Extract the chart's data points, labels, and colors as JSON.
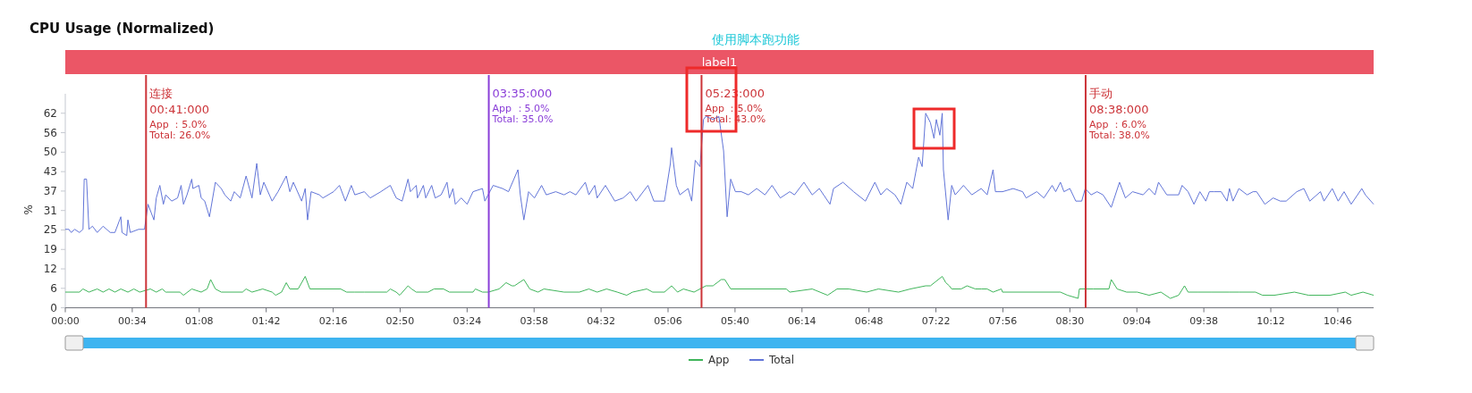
{
  "chart_data": {
    "type": "line",
    "title": "CPU Usage (Normalized)",
    "ylabel": "%",
    "legend": "bottom",
    "xlim": [
      0,
      11.07
    ],
    "ylim": [
      0,
      68.2
    ],
    "xticks": [
      {
        "value": 0,
        "label": "00:00"
      },
      {
        "value": 0.5667,
        "label": "00:34"
      },
      {
        "value": 1.1333,
        "label": "01:08"
      },
      {
        "value": 1.7,
        "label": "01:42"
      },
      {
        "value": 2.2667,
        "label": "02:16"
      },
      {
        "value": 2.8333,
        "label": "02:50"
      },
      {
        "value": 3.4,
        "label": "03:24"
      },
      {
        "value": 3.9667,
        "label": "03:58"
      },
      {
        "value": 4.5333,
        "label": "04:32"
      },
      {
        "value": 5.1,
        "label": "05:06"
      },
      {
        "value": 5.6667,
        "label": "05:40"
      },
      {
        "value": 6.2333,
        "label": "06:14"
      },
      {
        "value": 6.8,
        "label": "06:48"
      },
      {
        "value": 7.3667,
        "label": "07:22"
      },
      {
        "value": 7.9333,
        "label": "07:56"
      },
      {
        "value": 8.5,
        "label": "08:30"
      },
      {
        "value": 9.0667,
        "label": "09:04"
      },
      {
        "value": 9.6333,
        "label": "09:38"
      },
      {
        "value": 10.2,
        "label": "10:12"
      },
      {
        "value": 10.7667,
        "label": "10:46"
      }
    ],
    "yticks": [
      0,
      {
        "value": 6.2,
        "label": "6"
      },
      {
        "value": 12.4,
        "label": "12"
      },
      {
        "value": 18.6,
        "label": "19"
      },
      {
        "value": 24.8,
        "label": "25"
      },
      31,
      {
        "value": 37.2,
        "label": "37"
      },
      {
        "value": 43.4,
        "label": "43"
      },
      {
        "value": 49.6,
        "label": "50"
      },
      {
        "value": 55.8,
        "label": "56"
      },
      62
    ],
    "series": [
      {
        "name": "App",
        "color": "#3fb55a",
        "x": [
          0,
          0.03,
          0.12,
          0.15,
          0.2,
          0.27,
          0.32,
          0.37,
          0.42,
          0.47,
          0.53,
          0.58,
          0.63,
          0.72,
          0.77,
          0.82,
          0.85,
          0.97,
          1,
          1.07,
          1.15,
          1.2,
          1.23,
          1.27,
          1.32,
          1.5,
          1.53,
          1.58,
          1.67,
          1.75,
          1.78,
          1.83,
          1.87,
          1.9,
          1.97,
          2.03,
          2.07,
          2.33,
          2.38,
          2.45,
          2.53,
          2.72,
          2.75,
          2.8,
          2.83,
          2.9,
          2.93,
          2.97,
          3.07,
          3.12,
          3.2,
          3.25,
          3.45,
          3.47,
          3.53,
          3.58,
          3.67,
          3.73,
          3.78,
          3.8,
          3.88,
          3.93,
          4,
          4.05,
          4.22,
          4.35,
          4.43,
          4.5,
          4.58,
          4.67,
          4.75,
          4.8,
          4.92,
          4.97,
          5.07,
          5.13,
          5.18,
          5.23,
          5.32,
          5.42,
          5.48,
          5.55,
          5.58,
          5.63,
          6.1,
          6.13,
          6.32,
          6.45,
          6.53,
          6.63,
          6.78,
          6.88,
          7.05,
          7.15,
          7.28,
          7.32,
          7.42,
          7.45,
          7.48,
          7.5,
          7.58,
          7.63,
          7.7,
          7.75,
          7.8,
          7.85,
          7.92,
          7.93,
          8.42,
          8.48,
          8.57,
          8.58,
          8.7,
          8.83,
          8.85,
          8.9,
          8.98,
          9.07,
          9.17,
          9.27,
          9.35,
          9.42,
          9.47,
          9.5,
          9.58,
          9.7,
          9.85,
          9.93,
          10.07,
          10.13,
          10.23,
          10.4,
          10.52,
          10.7,
          10.83,
          10.88,
          10.98,
          11.07
        ],
        "values": [
          5,
          5,
          5,
          6,
          5,
          6,
          5,
          6,
          5,
          6,
          5,
          6,
          5,
          6,
          5,
          6,
          5,
          5,
          4,
          6,
          5,
          6,
          9,
          6,
          5,
          5,
          6,
          5,
          6,
          5,
          4,
          5,
          8,
          6,
          6,
          10,
          6,
          6,
          5,
          5,
          5,
          5,
          6,
          5,
          4,
          7,
          6,
          5,
          5,
          6,
          6,
          5,
          5,
          6,
          5,
          5,
          6,
          8,
          7,
          7,
          9,
          6,
          5,
          6,
          5,
          5,
          6,
          5,
          6,
          5,
          4,
          5,
          6,
          5,
          5,
          7,
          5,
          6,
          5,
          7,
          7,
          9,
          9,
          6,
          6,
          5,
          6,
          4,
          6,
          6,
          5,
          6,
          5,
          6,
          7,
          7,
          10,
          8,
          7,
          6,
          6,
          7,
          6,
          6,
          6,
          5,
          6,
          5,
          5,
          4,
          3,
          6,
          6,
          6,
          9,
          6,
          5,
          5,
          4,
          5,
          3,
          4,
          7,
          5,
          5,
          5,
          5,
          5,
          5,
          4,
          4,
          5,
          4,
          4,
          5,
          4,
          5,
          4
        ]
      },
      {
        "name": "Total",
        "color": "#6275d8",
        "x": [
          0,
          0.03,
          0.05,
          0.08,
          0.12,
          0.15,
          0.16,
          0.18,
          0.2,
          0.23,
          0.27,
          0.32,
          0.38,
          0.42,
          0.47,
          0.48,
          0.52,
          0.53,
          0.55,
          0.62,
          0.67,
          0.7,
          0.75,
          0.77,
          0.8,
          0.83,
          0.85,
          0.9,
          0.95,
          0.98,
          1,
          1.03,
          1.07,
          1.08,
          1.13,
          1.15,
          1.18,
          1.22,
          1.27,
          1.32,
          1.35,
          1.4,
          1.43,
          1.48,
          1.53,
          1.58,
          1.62,
          1.65,
          1.68,
          1.75,
          1.8,
          1.87,
          1.9,
          1.93,
          2,
          2.03,
          2.05,
          2.08,
          2.15,
          2.18,
          2.27,
          2.32,
          2.37,
          2.42,
          2.45,
          2.53,
          2.58,
          2.67,
          2.75,
          2.8,
          2.85,
          2.9,
          2.92,
          2.97,
          2.98,
          3.03,
          3.05,
          3.1,
          3.13,
          3.18,
          3.23,
          3.25,
          3.28,
          3.3,
          3.35,
          3.4,
          3.45,
          3.53,
          3.55,
          3.62,
          3.7,
          3.75,
          3.83,
          3.85,
          3.88,
          3.92,
          3.97,
          4.03,
          4.07,
          4.15,
          4.22,
          4.27,
          4.32,
          4.4,
          4.43,
          4.48,
          4.5,
          4.57,
          4.65,
          4.72,
          4.78,
          4.83,
          4.93,
          4.98,
          5.07,
          5.12,
          5.13,
          5.17,
          5.2,
          5.27,
          5.3,
          5.33,
          5.37,
          5.4,
          5.42,
          5.48,
          5.53,
          5.57,
          5.6,
          5.63,
          5.67,
          5.72,
          5.78,
          5.85,
          5.92,
          5.98,
          6.05,
          6.13,
          6.17,
          6.25,
          6.32,
          6.38,
          6.47,
          6.5,
          6.58,
          6.67,
          6.77,
          6.85,
          6.9,
          6.95,
          7.02,
          7.07,
          7.12,
          7.17,
          7.22,
          7.25,
          7.28,
          7.32,
          7.35,
          7.37,
          7.4,
          7.42,
          7.43,
          7.47,
          7.5,
          7.53,
          7.6,
          7.67,
          7.75,
          7.8,
          7.85,
          7.87,
          7.93,
          8.02,
          8.1,
          8.13,
          8.22,
          8.28,
          8.35,
          8.38,
          8.42,
          8.45,
          8.5,
          8.55,
          8.6,
          8.63,
          8.68,
          8.73,
          8.78,
          8.85,
          8.92,
          8.97,
          9.03,
          9.12,
          9.17,
          9.22,
          9.25,
          9.32,
          9.42,
          9.45,
          9.5,
          9.55,
          9.6,
          9.65,
          9.68,
          9.72,
          9.78,
          9.83,
          9.85,
          9.88,
          9.93,
          10,
          10.05,
          10.08,
          10.15,
          10.22,
          10.28,
          10.33,
          10.42,
          10.48,
          10.53,
          10.62,
          10.65,
          10.72,
          10.77,
          10.82,
          10.88,
          10.97,
          11,
          11.07
        ],
        "values": [
          25,
          25,
          24,
          25,
          24,
          25,
          41,
          41,
          25,
          26,
          24,
          26,
          24,
          24,
          29,
          24,
          23,
          28,
          24,
          25,
          25,
          33,
          28,
          35,
          39,
          33,
          36,
          34,
          35,
          39,
          33,
          36,
          41,
          38,
          39,
          35,
          34,
          29,
          40,
          38,
          36,
          34,
          37,
          35,
          42,
          35,
          46,
          36,
          40,
          34,
          37,
          42,
          37,
          40,
          34,
          38,
          28,
          37,
          36,
          35,
          37,
          39,
          34,
          39,
          36,
          37,
          35,
          37,
          39,
          35,
          34,
          41,
          37,
          39,
          35,
          39,
          35,
          39,
          35,
          36,
          40,
          35,
          38,
          33,
          35,
          33,
          37,
          38,
          34,
          39,
          38,
          37,
          44,
          36,
          28,
          37,
          35,
          39,
          36,
          37,
          36,
          37,
          36,
          40,
          36,
          39,
          35,
          39,
          34,
          35,
          37,
          34,
          39,
          34,
          34,
          46,
          51,
          39,
          36,
          38,
          34,
          47,
          45,
          60,
          61,
          60,
          61,
          50,
          29,
          41,
          37,
          37,
          36,
          38,
          36,
          39,
          35,
          37,
          36,
          40,
          36,
          38,
          33,
          38,
          40,
          37,
          34,
          40,
          36,
          38,
          36,
          33,
          40,
          38,
          48,
          45,
          62,
          59,
          54,
          60,
          55,
          62,
          44,
          28,
          39,
          36,
          39,
          36,
          38,
          36,
          44,
          37,
          37,
          38,
          37,
          35,
          37,
          35,
          39,
          37,
          40,
          37,
          38,
          34,
          34,
          38,
          36,
          37,
          36,
          32,
          40,
          35,
          37,
          36,
          38,
          36,
          40,
          36,
          36,
          39,
          37,
          33,
          37,
          34,
          37,
          37,
          37,
          34,
          38,
          34,
          38,
          36,
          37,
          37,
          33,
          35,
          34,
          34,
          37,
          38,
          34,
          37,
          34,
          38,
          34,
          37,
          33,
          38,
          36,
          33
        ]
      }
    ],
    "ref_lines": [
      {
        "axis": "x",
        "value": 0.6833,
        "color": "#cc3338"
      },
      {
        "axis": "x",
        "value": 3.5833,
        "color": "#8a3ed8"
      },
      {
        "axis": "x",
        "value": 5.3833,
        "color": "#cc3338"
      },
      {
        "axis": "x",
        "value": 8.6333,
        "color": "#cc3338"
      }
    ],
    "annotations": [
      "使用脚本跑功能",
      "label1",
      {
        "text": "连接\n00:41:000\nApp ：5.0%\nTotal: 26.0%",
        "x": 0.6833,
        "y": 67
      },
      {
        "text": "03:35:000\nApp ：5.0%\nTotal: 35.0%",
        "x": 3.5833,
        "y": 67
      },
      {
        "text": "05:23:000\nApp ：5.0%\nTotal: 43.0%",
        "x": 5.3833,
        "y": 67
      },
      {
        "text": "手动\n08:38:000\nApp ：6.0%\nTotal: 38.0%",
        "x": 8.6333,
        "y": 67
      }
    ]
  }
}
